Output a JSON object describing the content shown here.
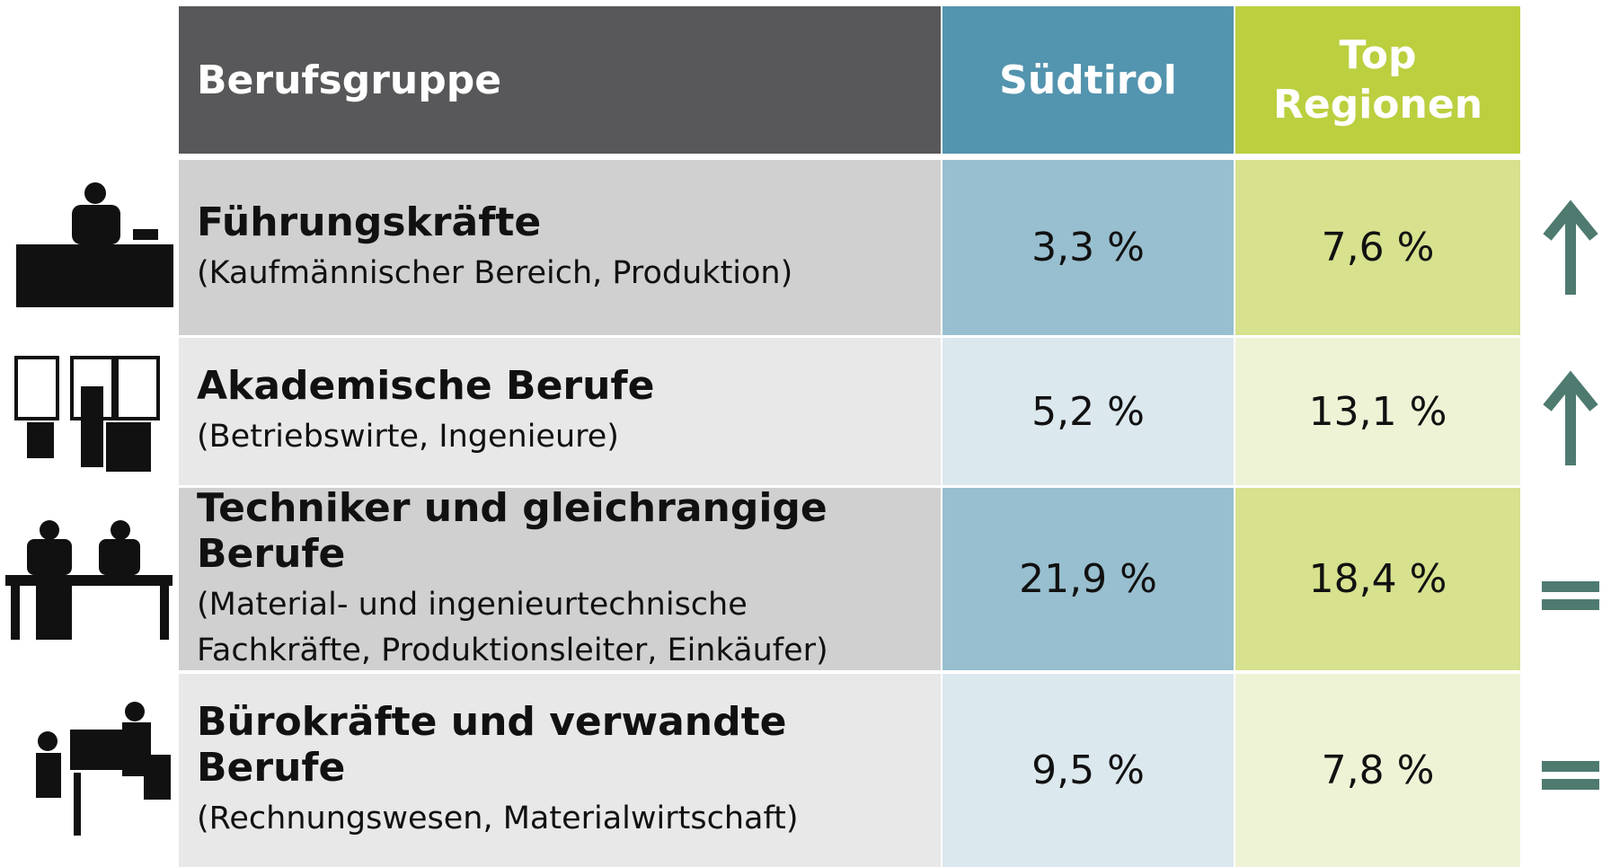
{
  "table": {
    "header": [
      "Berufsgruppe",
      "Südtirol",
      "Top Regionen"
    ],
    "rows": [
      {
        "title": "Führungskräfte",
        "subtitle": [
          "(Kaufmännischer Bereich, Produktion)"
        ],
        "suedtirol": "3,3 %",
        "top": "7,6 %"
      },
      {
        "title": "Akademische Berufe",
        "subtitle": [
          "(Betriebswirte, Ingenieure)"
        ],
        "suedtirol": "5,2 %",
        "top": "13,1 %"
      },
      {
        "title": "Techniker und gleichrangige Berufe",
        "subtitle": [
          "(Material- und ingenieurtechnische",
          "Fachkräfte, Produktionsleiter, Einkäufer)"
        ],
        "suedtirol": "21,9 %",
        "top": "18,4 %"
      },
      {
        "title": "Bürokräfte und verwandte Berufe",
        "subtitle": [
          "(Rechnungswesen, Materialwirtschaft)"
        ],
        "suedtirol": "9,5 %",
        "top": "7,8 %"
      }
    ]
  }
}
